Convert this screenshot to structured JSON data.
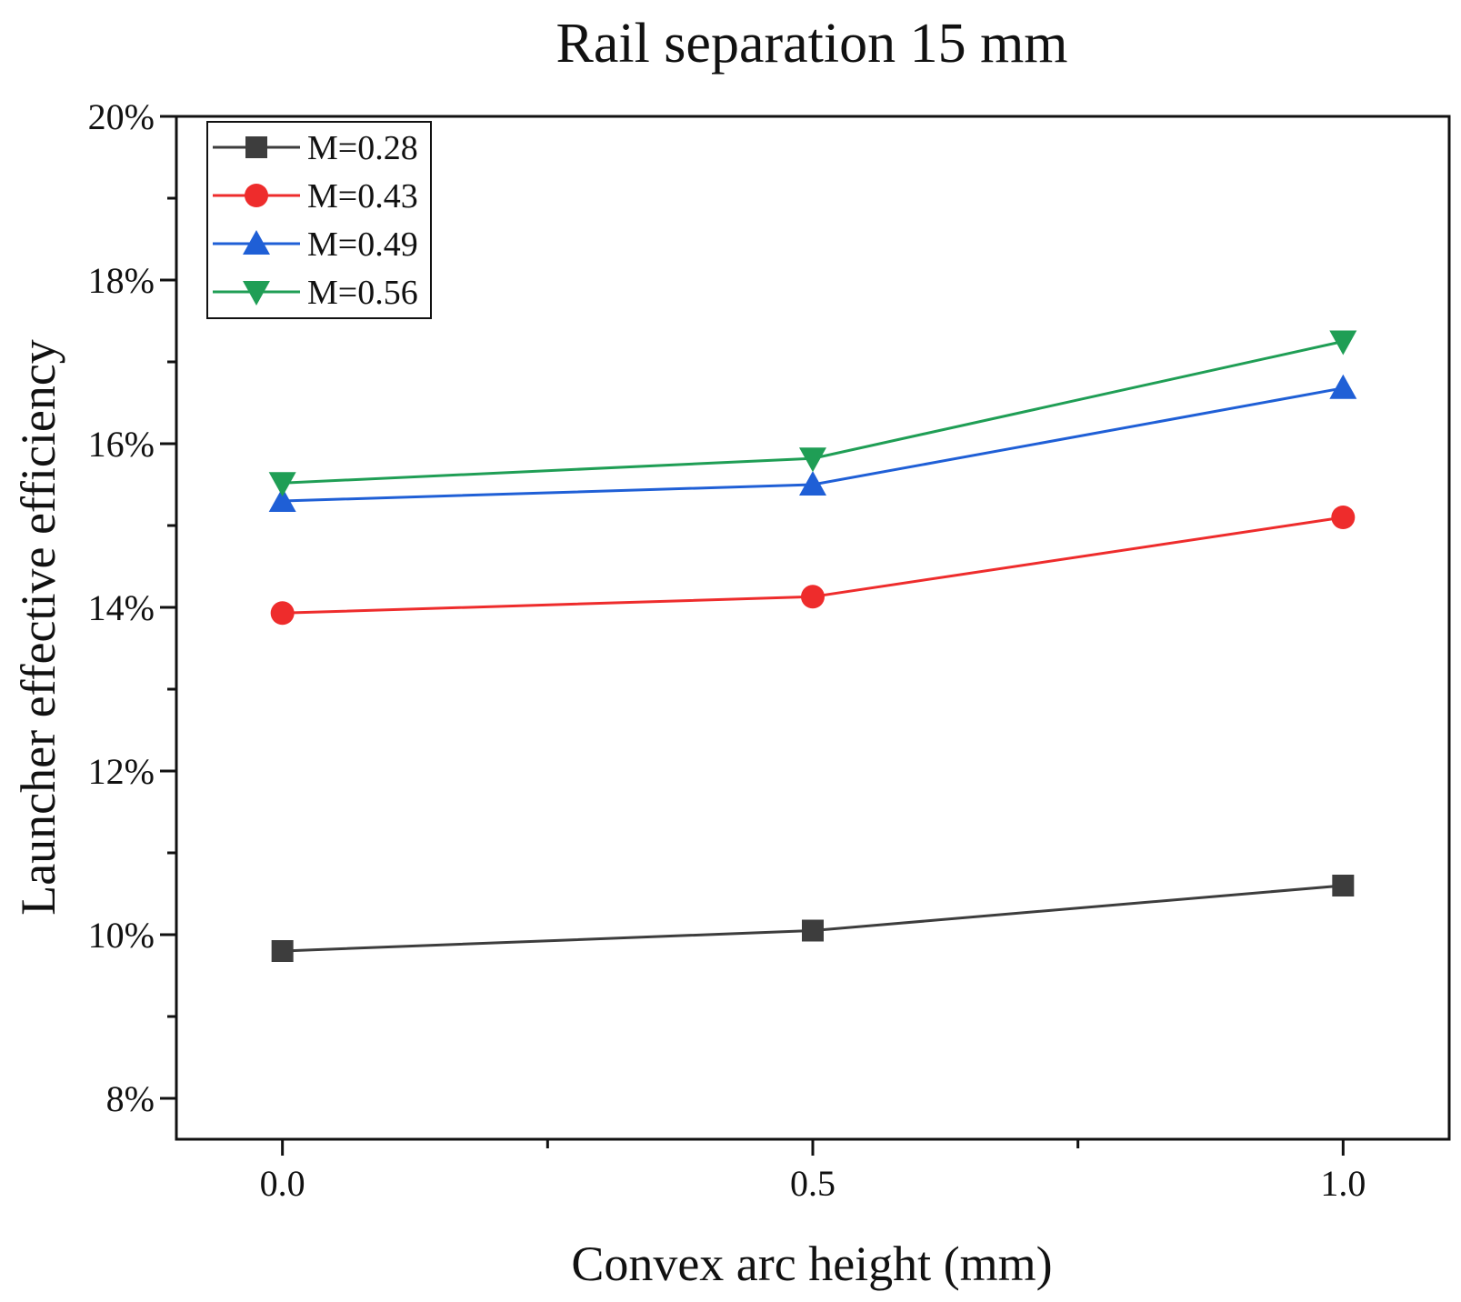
{
  "chart_data": {
    "type": "line",
    "title": "Rail separation 15 mm",
    "xlabel": "Convex arc height (mm)",
    "ylabel": "Launcher effective efficiency",
    "x": [
      0.0,
      0.5,
      1.0
    ],
    "xlim": [
      -0.1,
      1.1
    ],
    "ylim": [
      7.5,
      20
    ],
    "x_ticks": [
      {
        "value": 0.0,
        "label": "0.0"
      },
      {
        "value": 0.5,
        "label": "0.5"
      },
      {
        "value": 1.0,
        "label": "1.0"
      }
    ],
    "x_minor_ticks": [
      0.25,
      0.75
    ],
    "y_ticks": [
      {
        "value": 8,
        "label": "8%"
      },
      {
        "value": 10,
        "label": "10%"
      },
      {
        "value": 12,
        "label": "12%"
      },
      {
        "value": 14,
        "label": "14%"
      },
      {
        "value": 16,
        "label": "16%"
      },
      {
        "value": 18,
        "label": "18%"
      },
      {
        "value": 20,
        "label": "20%"
      }
    ],
    "y_minor_ticks": [
      9,
      11,
      13,
      15,
      17,
      19
    ],
    "legend_position": "top-left",
    "series": [
      {
        "name": "M=0.28",
        "values": [
          9.8,
          10.05,
          10.6
        ],
        "color": "#3d3d3d",
        "marker": "square"
      },
      {
        "name": "M=0.43",
        "values": [
          13.93,
          14.13,
          15.1
        ],
        "color": "#ee2c2c",
        "marker": "circle"
      },
      {
        "name": "M=0.49",
        "values": [
          15.3,
          15.5,
          16.68
        ],
        "color": "#1f5fd6",
        "marker": "triangle-up"
      },
      {
        "name": "M=0.56",
        "values": [
          15.52,
          15.82,
          17.25
        ],
        "color": "#1f9e55",
        "marker": "triangle-down"
      }
    ]
  }
}
